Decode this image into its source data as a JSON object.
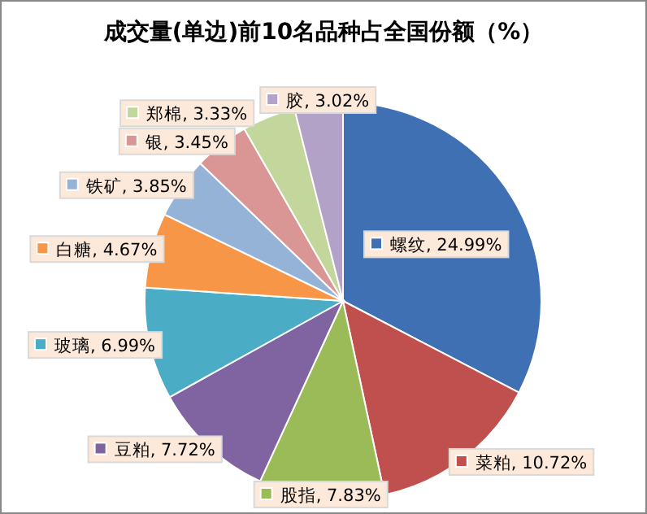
{
  "chart_data": {
    "type": "pie",
    "title": "成交量(单边)前10名品种占全国份额（%）",
    "categories": [
      "螺纹",
      "菜粕",
      "股指",
      "豆粕",
      "玻璃",
      "白糖",
      "铁矿",
      "银",
      "郑棉",
      "胶"
    ],
    "values": [
      24.99,
      10.72,
      7.83,
      7.72,
      6.99,
      4.67,
      3.85,
      3.45,
      3.33,
      3.02
    ],
    "value_labels": [
      "24.99%",
      "10.72%",
      "7.83%",
      "7.72%",
      "6.99%",
      "4.67%",
      "3.85%",
      "3.45%",
      "3.33%",
      "3.02%"
    ],
    "legend": "top left",
    "colors": [
      "#3e70b3",
      "#c0504d",
      "#9bbb59",
      "#8064a2",
      "#4bacc6",
      "#f79646",
      "#95b3d7",
      "#d99694",
      "#c3d69b",
      "#b3a2c7"
    ]
  }
}
